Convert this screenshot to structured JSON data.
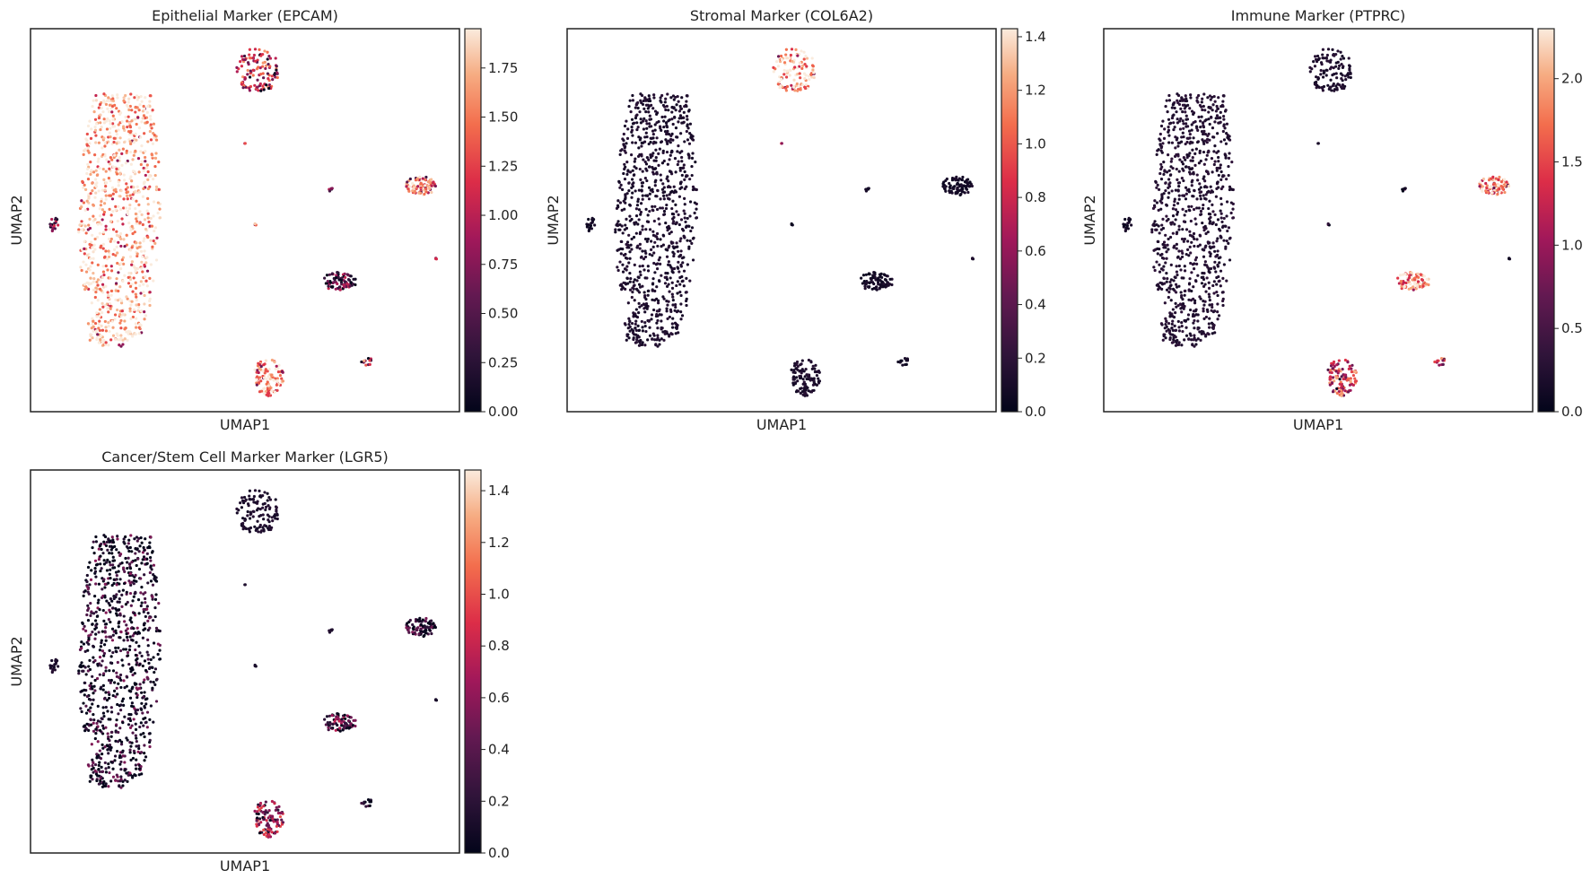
{
  "chart_data": [
    {
      "type": "scatter",
      "title": "Epithelial Marker (EPCAM)",
      "xlabel": "UMAP1",
      "ylabel": "UMAP2",
      "colorbar": {
        "ticks": [
          "0.00",
          "0.25",
          "0.50",
          "0.75",
          "1.00",
          "1.25",
          "1.50",
          "1.75"
        ],
        "min": 0,
        "max": 1.95
      },
      "colormap": "rocket",
      "cluster_levels": [
        0.95,
        0.55,
        0.75,
        0.25,
        0.3,
        0.35,
        0.65,
        0.9,
        0.5,
        0.6,
        0.4
      ]
    },
    {
      "type": "scatter",
      "title": "Stromal Marker (COL6A2)",
      "xlabel": "UMAP1",
      "ylabel": "UMAP2",
      "colorbar": {
        "ticks": [
          "0.0",
          "0.2",
          "0.4",
          "0.6",
          "0.8",
          "1.0",
          "1.2",
          "1.4"
        ],
        "min": 0,
        "max": 1.43
      },
      "colormap": "rocket",
      "cluster_levels": [
        0.05,
        0.9,
        0.02,
        0.02,
        0.02,
        0.02,
        0.02,
        0.05,
        0.02,
        0.02,
        0.4
      ]
    },
    {
      "type": "scatter",
      "title": "Immune Marker (PTPRC)",
      "xlabel": "UMAP1",
      "ylabel": "UMAP2",
      "colorbar": {
        "ticks": [
          "0.0",
          "0.5",
          "1.0",
          "1.5",
          "2.0"
        ],
        "min": 0,
        "max": 2.3
      },
      "colormap": "rocket",
      "cluster_levels": [
        0.07,
        0.05,
        0.85,
        0.85,
        0.02,
        0.1,
        0.1,
        0.6,
        0.02,
        0.6,
        0.02
      ]
    },
    {
      "type": "scatter",
      "title": "Cancer/Stem Cell Marker Marker (LGR5)",
      "xlabel": "UMAP1",
      "ylabel": "UMAP2",
      "colorbar": {
        "ticks": [
          "0.0",
          "0.2",
          "0.4",
          "0.6",
          "0.8",
          "1.0",
          "1.2",
          "1.4"
        ],
        "min": 0,
        "max": 1.48
      },
      "colormap": "rocket",
      "cluster_levels": [
        0.1,
        0.05,
        0.1,
        0.25,
        0.05,
        0.05,
        0.05,
        0.4,
        0.02,
        0.1,
        0.02
      ]
    }
  ]
}
